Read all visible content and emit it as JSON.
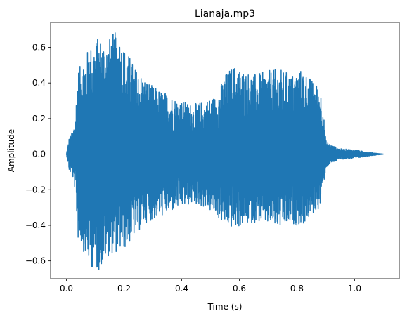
{
  "chart_data": {
    "type": "line",
    "title": "Lianaja.mp3",
    "xlabel": "Time (s)",
    "ylabel": "Amplitude",
    "xlim": [
      -0.055,
      1.155
    ],
    "ylim": [
      -0.7,
      0.74
    ],
    "xticks": [
      0.0,
      0.2,
      0.4,
      0.6,
      0.8,
      1.0
    ],
    "xtick_labels": [
      "0.0",
      "0.2",
      "0.4",
      "0.6",
      "0.8",
      "1.0"
    ],
    "yticks": [
      -0.6,
      -0.4,
      -0.2,
      0.0,
      0.2,
      0.4,
      0.6
    ],
    "ytick_labels": [
      "−0.6",
      "−0.4",
      "−0.2",
      "0.0",
      "0.2",
      "0.4",
      "0.6"
    ],
    "grid": false,
    "line_color": "#1f77b4",
    "series": [
      {
        "envelope_time": [
          0.0,
          0.01,
          0.02,
          0.03,
          0.04,
          0.05,
          0.06,
          0.08,
          0.1,
          0.12,
          0.14,
          0.16,
          0.18,
          0.2,
          0.22,
          0.24,
          0.26,
          0.28,
          0.3,
          0.33,
          0.36,
          0.4,
          0.44,
          0.48,
          0.52,
          0.55,
          0.58,
          0.62,
          0.66,
          0.7,
          0.74,
          0.78,
          0.82,
          0.85,
          0.88,
          0.89,
          0.9,
          0.92,
          0.95,
          1.0,
          1.05,
          1.1
        ],
        "envelope_max": [
          0.0,
          0.1,
          0.12,
          0.2,
          0.48,
          0.5,
          0.55,
          0.6,
          0.65,
          0.66,
          0.63,
          0.68,
          0.69,
          0.6,
          0.55,
          0.48,
          0.45,
          0.42,
          0.38,
          0.36,
          0.33,
          0.3,
          0.28,
          0.3,
          0.33,
          0.45,
          0.5,
          0.47,
          0.45,
          0.47,
          0.48,
          0.45,
          0.48,
          0.42,
          0.38,
          0.28,
          0.08,
          0.05,
          0.03,
          0.025,
          0.01,
          0.0
        ],
        "envelope_min": [
          0.0,
          -0.1,
          -0.12,
          -0.2,
          -0.48,
          -0.5,
          -0.55,
          -0.62,
          -0.67,
          -0.64,
          -0.58,
          -0.56,
          -0.55,
          -0.54,
          -0.5,
          -0.45,
          -0.42,
          -0.38,
          -0.37,
          -0.35,
          -0.33,
          -0.3,
          -0.28,
          -0.3,
          -0.35,
          -0.4,
          -0.42,
          -0.4,
          -0.38,
          -0.4,
          -0.42,
          -0.4,
          -0.4,
          -0.35,
          -0.3,
          -0.2,
          -0.08,
          -0.05,
          -0.03,
          -0.025,
          -0.01,
          0.0
        ]
      }
    ]
  }
}
